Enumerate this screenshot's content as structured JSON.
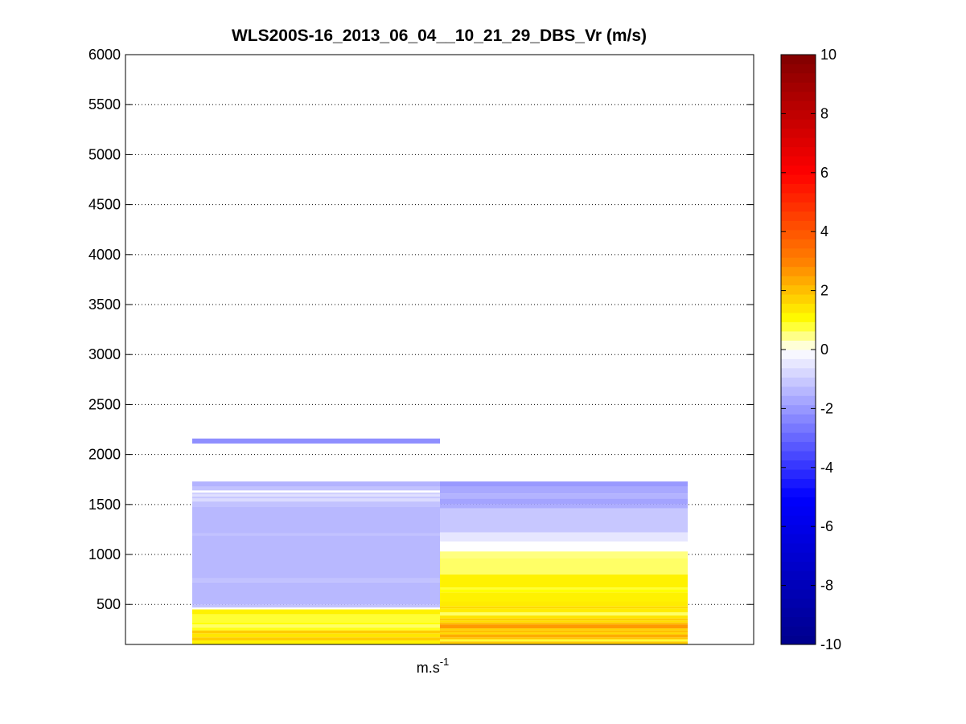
{
  "chart_data": {
    "type": "heatmap",
    "title": "WLS200S-16_2013_06_04__10_21_29_DBS_Vr (m/s)",
    "xlabel": {
      "base": "m.s",
      "superscript": "-1"
    },
    "ylabel": "",
    "ylim": [
      100,
      6000
    ],
    "yticks": [
      500,
      1000,
      1500,
      2000,
      2500,
      3000,
      3500,
      4000,
      4500,
      5000,
      5500,
      6000
    ],
    "grid": "horizontal-dotted",
    "colorbar": {
      "range": [
        -10,
        10
      ],
      "ticks": [
        10,
        8,
        6,
        4,
        2,
        0,
        -2,
        -4,
        -6,
        -8,
        -10
      ],
      "colors": {
        "negative_end": "#00008b",
        "mid_negative": "#0000ff",
        "zero": "#ffffff",
        "mid_positive": "#ffff00",
        "orange": "#ff8000",
        "red": "#ff0000",
        "positive_end": "#800000"
      }
    },
    "columns": [
      {
        "cells": [
          {
            "from": 2110,
            "to": 2160,
            "v": -2.2
          },
          {
            "from": 1680,
            "to": 1730,
            "v": -1.5
          },
          {
            "from": 1640,
            "to": 1680,
            "v": -1.2
          },
          {
            "from": 1620,
            "to": 1640,
            "v": 0
          },
          {
            "from": 1600,
            "to": 1620,
            "v": -0.9
          },
          {
            "from": 1580,
            "to": 1600,
            "v": -0.6
          },
          {
            "from": 1560,
            "to": 1580,
            "v": -1.1
          },
          {
            "from": 1530,
            "to": 1560,
            "v": -0.7
          },
          {
            "from": 1480,
            "to": 1530,
            "v": -1.2
          },
          {
            "from": 1210,
            "to": 1480,
            "v": -1.4
          },
          {
            "from": 1190,
            "to": 1210,
            "v": -1.2
          },
          {
            "from": 760,
            "to": 1190,
            "v": -1.4
          },
          {
            "from": 720,
            "to": 760,
            "v": -1.2
          },
          {
            "from": 500,
            "to": 720,
            "v": -1.4
          },
          {
            "from": 470,
            "to": 500,
            "v": -1.2
          },
          {
            "from": 450,
            "to": 470,
            "v": 0
          },
          {
            "from": 400,
            "to": 450,
            "v": 1.2
          },
          {
            "from": 320,
            "to": 400,
            "v": 0.8
          },
          {
            "from": 300,
            "to": 320,
            "v": 1.0
          },
          {
            "from": 270,
            "to": 300,
            "v": 0.6
          },
          {
            "from": 240,
            "to": 270,
            "v": 0.9
          },
          {
            "from": 210,
            "to": 240,
            "v": 1.8
          },
          {
            "from": 170,
            "to": 210,
            "v": 1.4
          },
          {
            "from": 140,
            "to": 170,
            "v": 1.8
          },
          {
            "from": 100,
            "to": 140,
            "v": 1.2
          }
        ]
      },
      {
        "cells": [
          {
            "from": 1680,
            "to": 1730,
            "v": -2.0
          },
          {
            "from": 1610,
            "to": 1680,
            "v": -1.7
          },
          {
            "from": 1560,
            "to": 1610,
            "v": -1.5
          },
          {
            "from": 1500,
            "to": 1560,
            "v": -1.8
          },
          {
            "from": 1460,
            "to": 1500,
            "v": -1.6
          },
          {
            "from": 1220,
            "to": 1460,
            "v": -1.1
          },
          {
            "from": 1130,
            "to": 1220,
            "v": -0.5
          },
          {
            "from": 1030,
            "to": 1130,
            "v": 0
          },
          {
            "from": 960,
            "to": 1030,
            "v": 0.5
          },
          {
            "from": 800,
            "to": 960,
            "v": 0.6
          },
          {
            "from": 670,
            "to": 800,
            "v": 1.2
          },
          {
            "from": 650,
            "to": 670,
            "v": 0.8
          },
          {
            "from": 620,
            "to": 650,
            "v": 1.0
          },
          {
            "from": 530,
            "to": 620,
            "v": 1.2
          },
          {
            "from": 480,
            "to": 530,
            "v": 1.3
          },
          {
            "from": 460,
            "to": 480,
            "v": 1.6
          },
          {
            "from": 420,
            "to": 460,
            "v": 1.3
          },
          {
            "from": 390,
            "to": 420,
            "v": 0.6
          },
          {
            "from": 360,
            "to": 390,
            "v": 1.4
          },
          {
            "from": 340,
            "to": 360,
            "v": 1.8
          },
          {
            "from": 320,
            "to": 340,
            "v": 1.5
          },
          {
            "from": 300,
            "to": 320,
            "v": 2.0
          },
          {
            "from": 260,
            "to": 300,
            "v": 2.6
          },
          {
            "from": 240,
            "to": 260,
            "v": 1.7
          },
          {
            "from": 220,
            "to": 240,
            "v": 2.0
          },
          {
            "from": 200,
            "to": 220,
            "v": 1.6
          },
          {
            "from": 170,
            "to": 200,
            "v": 2.3
          },
          {
            "from": 150,
            "to": 170,
            "v": 1.9
          },
          {
            "from": 130,
            "to": 150,
            "v": 0.8
          },
          {
            "from": 100,
            "to": 130,
            "v": 1.8
          }
        ]
      }
    ]
  }
}
